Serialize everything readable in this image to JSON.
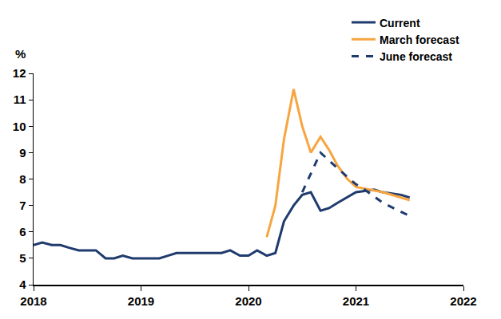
{
  "chart_data": {
    "type": "line",
    "y_label": "%",
    "xlim": [
      2018,
      2022
    ],
    "xticks": [
      2018,
      2019,
      2020,
      2021,
      2022
    ],
    "ylim": [
      4,
      12
    ],
    "yticks": [
      4,
      5,
      6,
      7,
      8,
      9,
      10,
      11,
      12
    ],
    "grid": false,
    "legend": "top right",
    "series": [
      {
        "name": "Current",
        "color": "#1f3b6e",
        "line_style": "solid",
        "x": [
          2018.0,
          2018.08,
          2018.17,
          2018.25,
          2018.33,
          2018.42,
          2018.5,
          2018.58,
          2018.67,
          2018.75,
          2018.83,
          2018.92,
          2019.0,
          2019.08,
          2019.17,
          2019.25,
          2019.33,
          2019.42,
          2019.5,
          2019.58,
          2019.67,
          2019.75,
          2019.83,
          2019.92,
          2020.0,
          2020.08,
          2020.17,
          2020.25,
          2020.33,
          2020.42,
          2020.5,
          2020.58,
          2020.67,
          2020.75,
          2020.83,
          2020.92,
          2021.0,
          2021.08,
          2021.17,
          2021.25,
          2021.33,
          2021.42,
          2021.5
        ],
        "values": [
          5.5,
          5.6,
          5.5,
          5.5,
          5.4,
          5.3,
          5.3,
          5.3,
          5.0,
          5.0,
          5.1,
          5.0,
          5.0,
          5.0,
          5.0,
          5.1,
          5.2,
          5.2,
          5.2,
          5.2,
          5.2,
          5.2,
          5.3,
          5.1,
          5.1,
          5.3,
          5.1,
          5.2,
          6.4,
          7.0,
          7.4,
          7.5,
          6.8,
          6.9,
          7.1,
          7.3,
          7.5,
          7.55,
          7.6,
          7.5,
          7.45,
          7.4,
          7.3
        ]
      },
      {
        "name": "March forecast",
        "color": "#f7a541",
        "line_style": "solid",
        "x": [
          2020.17,
          2020.25,
          2020.33,
          2020.42,
          2020.5,
          2020.58,
          2020.67,
          2020.75,
          2020.83,
          2020.92,
          2021.0,
          2021.25,
          2021.5
        ],
        "values": [
          5.8,
          7.0,
          9.5,
          11.4,
          10.0,
          9.0,
          9.6,
          9.1,
          8.5,
          8.0,
          7.7,
          7.5,
          7.2
        ]
      },
      {
        "name": "June forecast",
        "color": "#1f3b6e",
        "line_style": "dashed",
        "x": [
          2020.5,
          2020.58,
          2020.67,
          2020.83,
          2021.0,
          2021.08,
          2021.25,
          2021.5
        ],
        "values": [
          7.5,
          8.2,
          9.0,
          8.4,
          7.8,
          7.6,
          7.1,
          6.6
        ]
      }
    ]
  }
}
